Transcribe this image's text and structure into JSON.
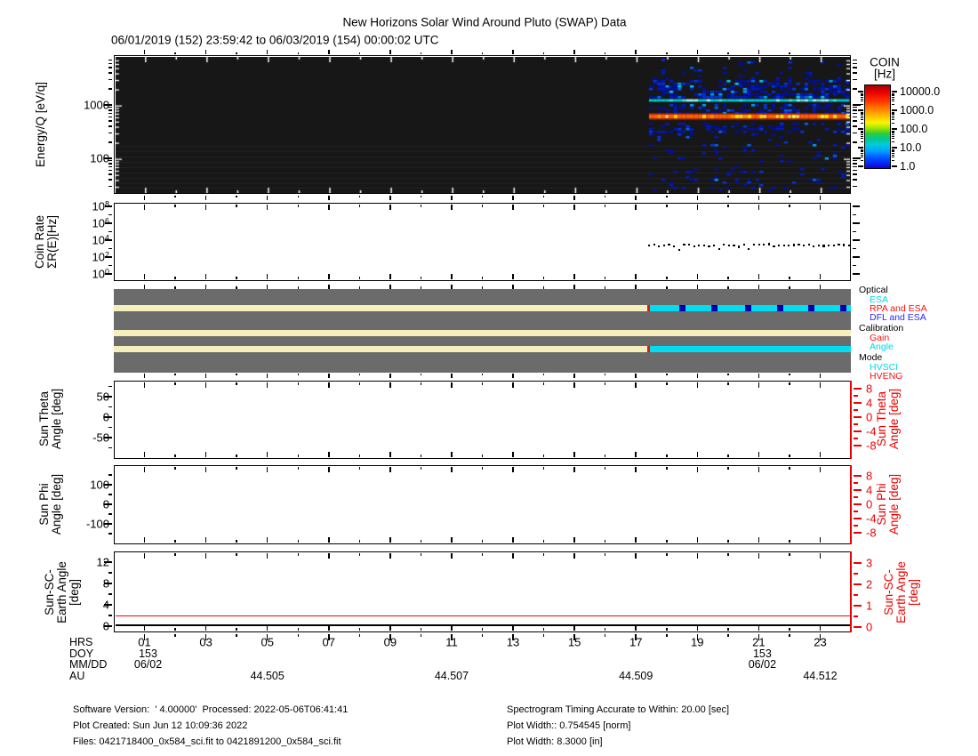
{
  "title": "New Horizons Solar Wind Around Pluto (SWAP) Data",
  "subtitle": "06/01/2019 (152) 23:59:42 to 06/03/2019 (154) 00:00:02 UTC",
  "colorbar": {
    "title": [
      "COIN",
      "[Hz]"
    ],
    "tick_labels": [
      "10000.0",
      "1000.0",
      "100.0",
      "10.0",
      "1.0"
    ]
  },
  "axes": {
    "energy": {
      "label": "Energy/Q [eV/q]",
      "tick_labels": [
        "1000",
        "100"
      ]
    },
    "coinrate": {
      "label": [
        "Coin Rate",
        "ΣR(E)[Hz]"
      ],
      "tick_labels": [
        "10^8",
        "10^6",
        "10^4",
        "10^2",
        "10^0"
      ]
    },
    "suntheta": {
      "label": [
        "Sun Theta",
        "Angle [deg]"
      ],
      "left_tick_labels": [
        "50",
        "0",
        "-50"
      ],
      "right_tick_labels": [
        "8",
        "4",
        "0",
        "-4",
        "-8"
      ]
    },
    "sunphi": {
      "label": [
        "Sun Phi",
        "Angle [deg]"
      ],
      "left_tick_labels": [
        "100",
        "0",
        "-100"
      ],
      "right_tick_labels": [
        "8",
        "4",
        "0",
        "-4",
        "-8"
      ]
    },
    "sunscearth": {
      "label": [
        "Sun-SC-",
        "Earth Angle",
        "[deg]"
      ],
      "left_tick_labels": [
        "12",
        "8",
        "4",
        "0"
      ],
      "right_tick_labels": [
        "3",
        "2",
        "1",
        "0"
      ]
    }
  },
  "legend": {
    "groups": [
      {
        "title": "Optical",
        "items": [
          {
            "label": "ESA",
            "color": "#00D8EA"
          },
          {
            "label": "RPA and ESA",
            "color": "#F81010"
          },
          {
            "label": "DFL and ESA",
            "color": "#2828FF"
          }
        ]
      },
      {
        "title": "Calibration",
        "items": [
          {
            "label": "Gain",
            "color": "#F81010"
          },
          {
            "label": "Angle",
            "color": "#00D8EA"
          }
        ]
      },
      {
        "title": "Mode",
        "items": [
          {
            "label": "HVSCI",
            "color": "#00D8EA"
          },
          {
            "label": "HVENG",
            "color": "#F81010"
          }
        ]
      }
    ]
  },
  "status_rows": [
    {
      "name": "optical",
      "segments": [
        {
          "h0": 0,
          "h1": 17.37,
          "color": "#F4EFBC"
        },
        {
          "h0": 17.37,
          "h1": 17.45,
          "color": "#EE1111"
        },
        {
          "h0": 17.45,
          "h1": 24,
          "color": "#00DCF0"
        }
      ],
      "marks": {
        "color": "#0000B4",
        "hours": [
          18.4,
          19.45,
          20.55,
          21.6,
          22.6,
          23.65
        ]
      }
    },
    {
      "name": "calibration",
      "segments": [
        {
          "h0": 0,
          "h1": 24,
          "color": "#F4EFBC"
        }
      ]
    },
    {
      "name": "mode",
      "segments": [
        {
          "h0": 0,
          "h1": 17.37,
          "color": "#F4EFBC"
        },
        {
          "h0": 17.37,
          "h1": 17.45,
          "color": "#EE1111"
        },
        {
          "h0": 17.45,
          "h1": 24,
          "color": "#00DCF0"
        }
      ]
    }
  ],
  "xaxis": {
    "row_labels": [
      "HRS",
      "DOY",
      "MM/DD",
      "AU"
    ],
    "hours": [
      "01",
      "03",
      "05",
      "07",
      "09",
      "11",
      "13",
      "15",
      "17",
      "19",
      "21",
      "23"
    ],
    "doy": [
      {
        "text": "153",
        "hour": 1
      },
      {
        "text": "153",
        "hour": 21
      }
    ],
    "mmdd": [
      {
        "text": "06/02",
        "hour": 1
      },
      {
        "text": "06/02",
        "hour": 21
      }
    ],
    "au": [
      {
        "text": "44.505",
        "hour": 5
      },
      {
        "text": "44.507",
        "hour": 11
      },
      {
        "text": "44.509",
        "hour": 17
      },
      {
        "text": "44.512",
        "hour": 23
      }
    ]
  },
  "footer": {
    "left": [
      "Software Version:  ' 4.00000'  Processed: 2022-05-06T06:41:41",
      "Plot Created: Sun Jun 12 10:09:36 2022",
      "Files: 0421718400_0x584_sci.fit to 0421891200_0x584_sci.fit"
    ],
    "right": [
      "Spectrogram Timing Accurate to Within: 20.00 [sec]",
      "Plot Width:: 0.754545 [norm]",
      "Plot Width: 8.3000 [in]"
    ]
  },
  "chart_data": [
    {
      "type": "heatmap",
      "panel": "energy-spectrogram",
      "ylabel": "Energy/Q [eV/q]",
      "yscale": "log",
      "yrange_eV": [
        21,
        8600
      ],
      "x_hours_range": [
        0,
        24
      ],
      "x_date": "06/02/2019 DOY 153",
      "colorscale": {
        "label": "COIN [Hz]",
        "scale": "log",
        "range": [
          1,
          10000
        ]
      },
      "data_present_hours": [
        17.45,
        24
      ],
      "features": [
        {
          "name": "proton-beam",
          "energy_eV": 600,
          "coin_hz": 3000,
          "appearance": "continuous orange-red band with yellow maxima"
        },
        {
          "name": "narrow-cyan-band",
          "energy_eV": 1250,
          "coin_hz": 60,
          "appearance": "continuous cyan line"
        },
        {
          "name": "diffuse-alpha-band",
          "energy_eV_range": [
            1300,
            3500
          ],
          "coin_hz_range": [
            3,
            30
          ],
          "appearance": "dense blue speckle"
        },
        {
          "name": "background",
          "coin_hz_range": [
            1,
            5
          ],
          "appearance": "sparse dark-blue speckle over full energy range"
        }
      ]
    },
    {
      "type": "scatter",
      "panel": "coin-rate",
      "ylabel": "Coin Rate ΣR(E) [Hz]",
      "yscale": "log",
      "yrange_hz": [
        1,
        100000000
      ],
      "points": {
        "start_hour": 17.4,
        "end_hour": 23.9,
        "n": 41,
        "level_hz": 3000,
        "dip_hz": 1300,
        "dip_indices": [
          6,
          14,
          20
        ]
      }
    },
    {
      "type": "timeline",
      "panel": "instrument-status",
      "rows": [
        {
          "name": "Optical",
          "states": [
            {
              "hours": [
                0,
                17.37
              ],
              "state": "idle"
            },
            {
              "hours": [
                17.37,
                17.45
              ],
              "state": "RPA and ESA"
            },
            {
              "hours": [
                17.45,
                24
              ],
              "state": "ESA with periodic DFL and ESA"
            }
          ]
        },
        {
          "name": "Calibration",
          "states": [
            {
              "hours": [
                0,
                24
              ],
              "state": "idle"
            }
          ]
        },
        {
          "name": "Mode",
          "states": [
            {
              "hours": [
                0,
                17.37
              ],
              "state": "idle"
            },
            {
              "hours": [
                17.37,
                17.45
              ],
              "state": "HVENG"
            },
            {
              "hours": [
                17.45,
                24
              ],
              "state": "HVSCI"
            }
          ]
        }
      ]
    },
    {
      "type": "line",
      "panel": "sun-theta-angle",
      "yrange_left_deg": [
        -90,
        90
      ],
      "yrange_right_deg": [
        -9,
        9
      ],
      "series": []
    },
    {
      "type": "line",
      "panel": "sun-phi-angle",
      "yrange_left_deg": [
        -180,
        180
      ],
      "yrange_right_deg": [
        -9,
        9
      ],
      "series": []
    },
    {
      "type": "line",
      "panel": "sun-sc-earth-angle",
      "yrange_left_deg": [
        0,
        14
      ],
      "yrange_right_deg": [
        0,
        3.3
      ],
      "series": [
        {
          "name": "angle-on-right-axis",
          "value_deg": 0.55,
          "color": "#FF0000"
        },
        {
          "name": "angle-on-left-axis",
          "value_deg": 0.3,
          "color": "#000000"
        }
      ]
    }
  ]
}
